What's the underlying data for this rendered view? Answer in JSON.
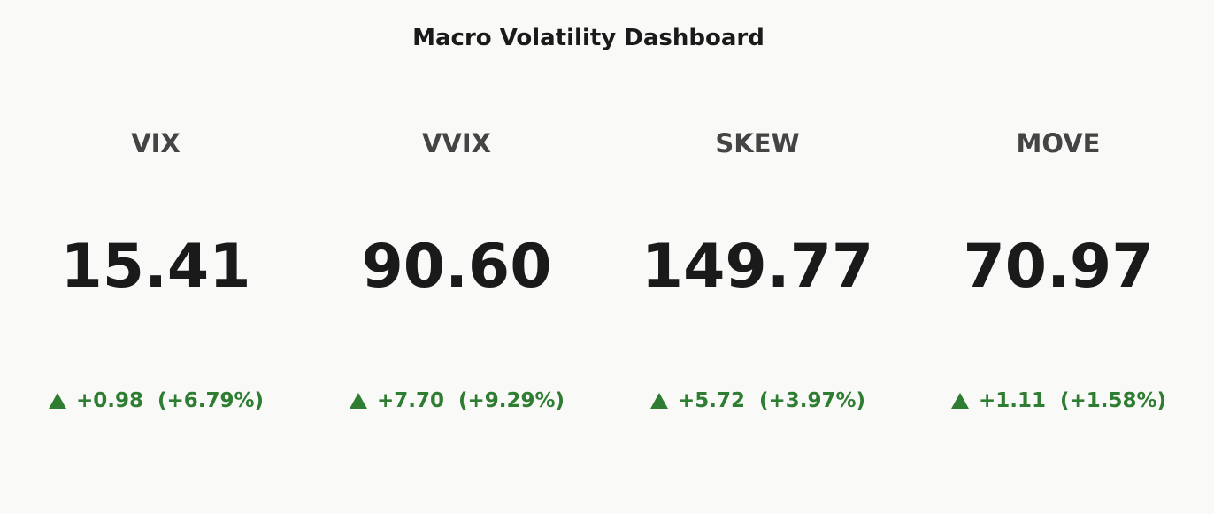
{
  "chart_data": {
    "type": "indicator",
    "title": "Macro Volatility Dashboard",
    "categories": [
      "VIX",
      "VVIX",
      "SKEW",
      "MOVE"
    ],
    "values": [
      15.41,
      90.6,
      149.77,
      70.97
    ],
    "value_labels": [
      "15.41",
      "90.60",
      "149.77",
      "70.97"
    ],
    "delta": [
      0.98,
      7.7,
      5.72,
      1.11
    ],
    "delta_labels": [
      "+0.98",
      "+7.70",
      "+5.72",
      "+1.11"
    ],
    "delta_percent": [
      6.79,
      9.29,
      3.97,
      1.58
    ],
    "delta_percent_labels": [
      "(+6.79%)",
      "(+9.29%)",
      "(+3.97%)",
      "(+1.58%)"
    ],
    "increasing_color": "#2e7d32"
  }
}
